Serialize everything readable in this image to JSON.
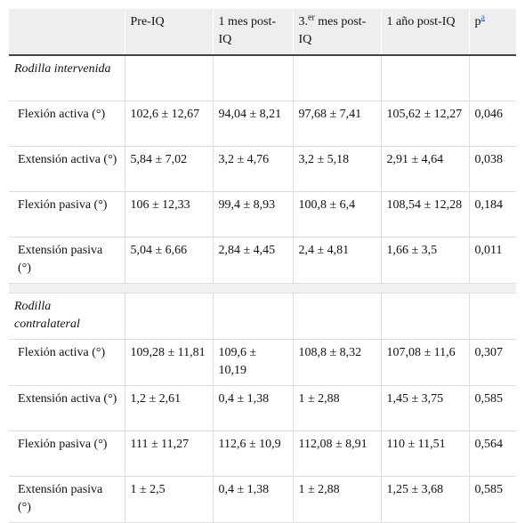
{
  "header": [
    "Pre-IQ",
    "1 mes post-IQ",
    {
      "text": "3.",
      "sup": "er",
      "rest": " mes post-IQ"
    },
    "1 año post-IQ",
    {
      "text": "p",
      "sup": "a"
    }
  ],
  "sections": [
    {
      "title": "Rodilla intervenida",
      "rows": [
        [
          "Flexión activa (°)",
          "102,6 ± 12,67",
          "94,04 ± 8,21",
          "97,68 ± 7,41",
          "105,62 ± 12,27",
          "0,046"
        ],
        [
          "Extensión activa (°)",
          "5,84 ± 7,02",
          "3,2 ± 4,76",
          "3,2 ± 5,18",
          "2,91 ± 4,64",
          "0,038"
        ],
        [
          "Flexión pasiva (°)",
          "106 ± 12,33",
          "99,4 ± 8,93",
          "100,8 ± 6,4",
          "108,54 ± 12,28",
          "0,184"
        ],
        [
          "Extensión pasiva (°)",
          "5,04 ± 6,66",
          "2,84 ± 4,45",
          "2,4 ± 4,81",
          "1,66 ± 3,5",
          "0,011"
        ]
      ]
    },
    {
      "title": "Rodilla contralateral",
      "rows": [
        [
          "Flexión activa (°)",
          "109,28 ± 11,81",
          "109,6 ± 10,19",
          "108,8 ± 8,32",
          "107,08 ± 11,6",
          "0,307"
        ],
        [
          "Extensión activa (°)",
          "1,2 ± 2,61",
          "0,4 ± 1,38",
          "1 ± 2,88",
          "1,45 ± 3,75",
          "0,585"
        ],
        [
          "Flexión pasiva (°)",
          "111 ± 11,27",
          "112,6 ± 10,9",
          "112,08 ± 8,91",
          "110 ± 11,51",
          "0,564"
        ],
        [
          "Extensión pasiva (°)",
          "1 ± 2,5",
          "0,4 ± 1,38",
          "1 ± 2,88",
          "1,25 ± 3,68",
          "0,585"
        ]
      ]
    }
  ]
}
